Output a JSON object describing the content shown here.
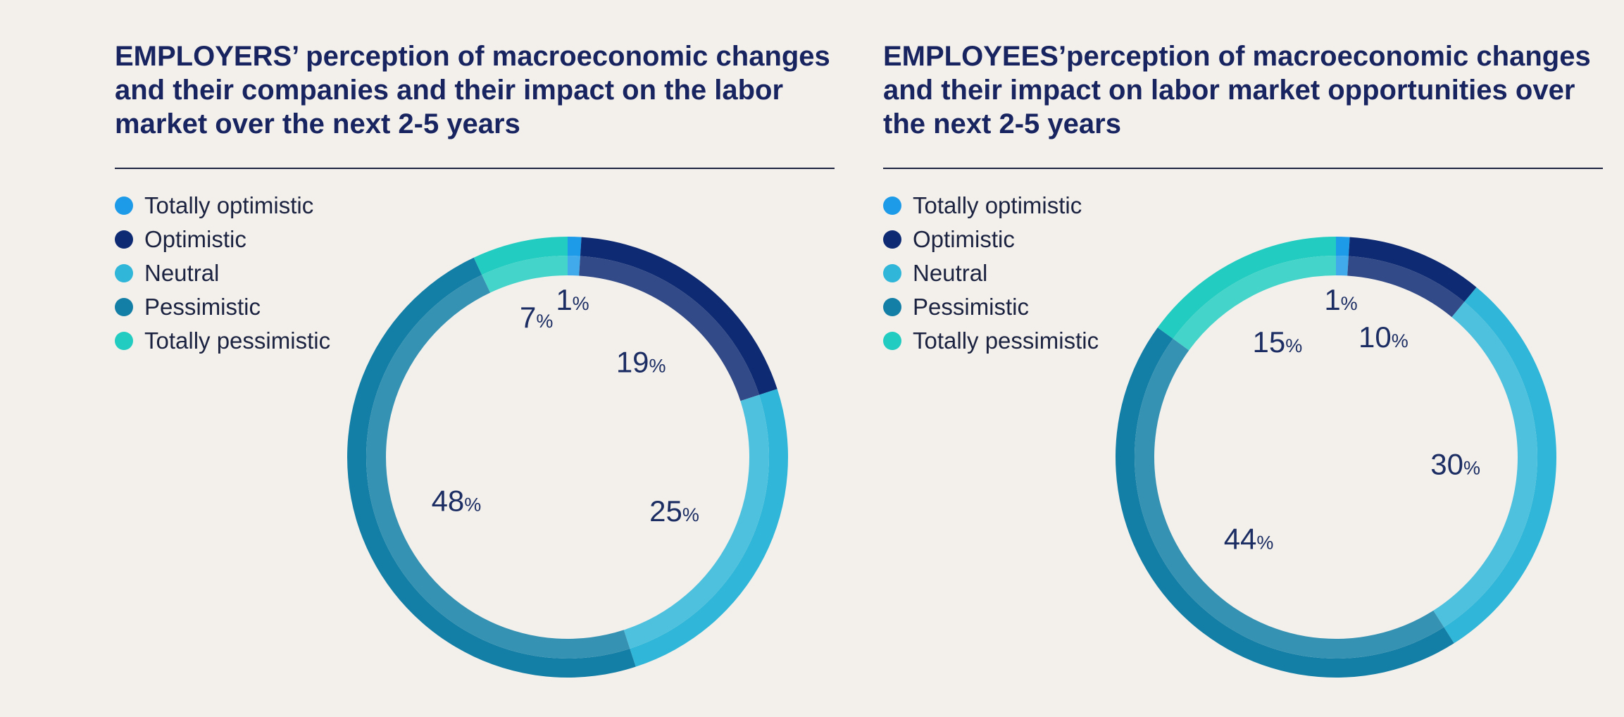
{
  "colors": {
    "totally_optimistic": "#1e9be8",
    "optimistic": "#0e2a73",
    "neutral": "#2fb6d8",
    "pessimistic": "#137fa6",
    "totally_pessimistic": "#23ccc0"
  },
  "percent_sign": "%",
  "chart_data": [
    {
      "type": "pie",
      "variant": "donut",
      "title": "EMPLOYERS’ perception of macroeconomic changes and their companies and their impact on the labor market over the next 2-5 years",
      "categories": [
        "Totally optimistic",
        "Optimistic",
        "Neutral",
        "Pessimistic",
        "Totally pessimistic"
      ],
      "values": [
        1,
        19,
        25,
        48,
        7
      ],
      "unit": "%",
      "legend_position": "top-left"
    },
    {
      "type": "pie",
      "variant": "donut",
      "title": "EMPLOYEES’perception of macroeconomic changes and their impact on labor market opportunities over the next 2-5 years",
      "categories": [
        "Totally optimistic",
        "Optimistic",
        "Neutral",
        "Pessimistic",
        "Totally pessimistic"
      ],
      "values": [
        1,
        10,
        30,
        44,
        15
      ],
      "unit": "%",
      "legend_position": "top-left"
    }
  ]
}
